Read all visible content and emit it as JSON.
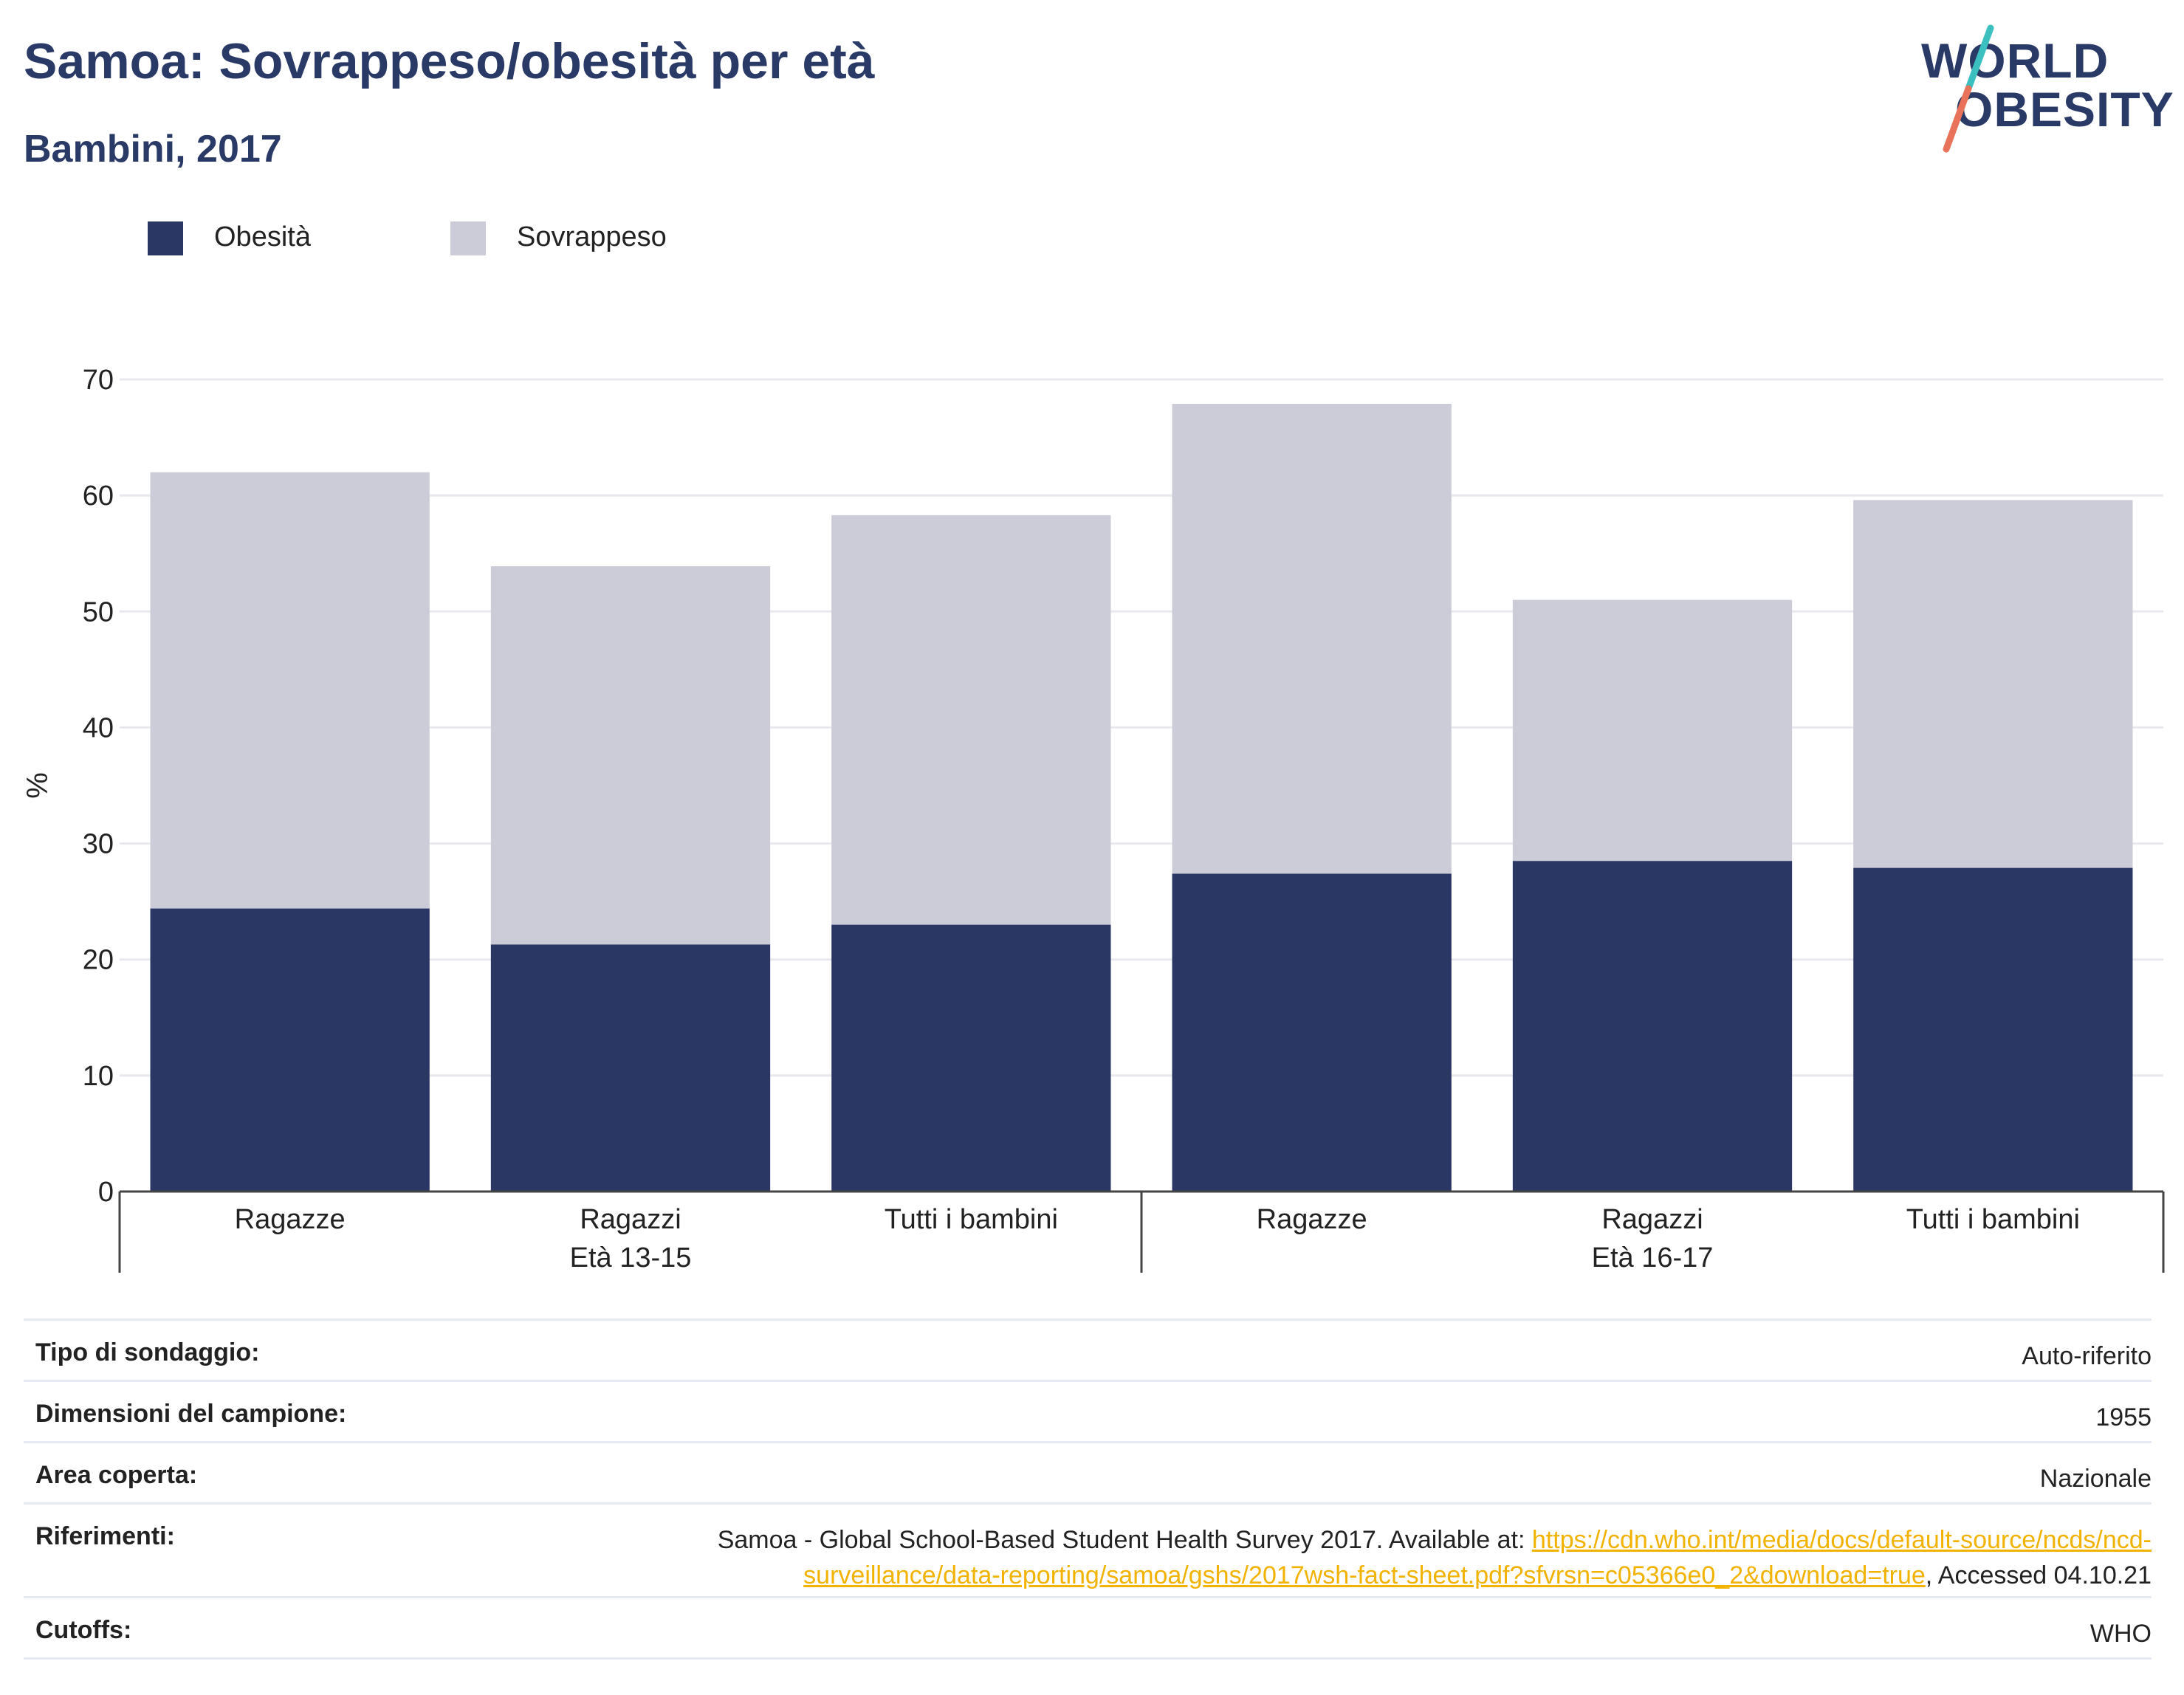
{
  "header": {
    "title": "Samoa: Sovrappeso/obesità per età",
    "subtitle": "Bambini, 2017"
  },
  "logo": {
    "line1": "WORLD",
    "line2": "OBESITY",
    "colors": {
      "navy": "#2a3a66",
      "teal": "#3bbfbf",
      "coral": "#e8735a"
    }
  },
  "legend": {
    "items": [
      {
        "label": "Obesità",
        "color": "#2a3764"
      },
      {
        "label": "Sovrappeso",
        "color": "#cbccd8"
      }
    ]
  },
  "chart_data": {
    "type": "bar",
    "stacked": true,
    "ylabel": "%",
    "ylim": [
      0,
      70
    ],
    "yticks": [
      0,
      10,
      20,
      30,
      40,
      50,
      60,
      70
    ],
    "grid": true,
    "legend_position": "top-left",
    "groups": [
      {
        "label": "Età 13-15",
        "categories": [
          "Ragazze",
          "Ragazzi",
          "Tutti i bambini"
        ]
      },
      {
        "label": "Età 16-17",
        "categories": [
          "Ragazze",
          "Ragazzi",
          "Tutti i bambini"
        ]
      }
    ],
    "series": [
      {
        "name": "Obesità",
        "color": "#2a3764",
        "values": [
          24.4,
          21.3,
          23.0,
          27.4,
          28.5,
          27.9
        ]
      },
      {
        "name": "Sovrappeso",
        "color": "#cbccd8",
        "values": [
          37.6,
          32.6,
          35.3,
          40.5,
          22.5,
          31.7
        ]
      }
    ]
  },
  "info": {
    "survey_type": {
      "label": "Tipo di sondaggio:",
      "value": "Auto-riferito"
    },
    "sample_size": {
      "label": "Dimensioni del campione:",
      "value": "1955"
    },
    "area": {
      "label": "Area coperta:",
      "value": "Nazionale"
    },
    "references": {
      "label": "Riferimenti:",
      "text_before": "Samoa - Global School-Based Student Health Survey 2017. Available at: ",
      "link_line1": "https://cdn.who.int/media/docs/default-source/ncds/ncd-",
      "link_line2": "surveillance/data-reporting/samoa/gshs/2017wsh-fact-sheet.pdf?sfvrsn=c05366e0_2&download=true",
      "text_after": ", Accessed 04.10.21"
    },
    "cutoffs": {
      "label": "Cutoffs:",
      "value": "WHO"
    }
  }
}
